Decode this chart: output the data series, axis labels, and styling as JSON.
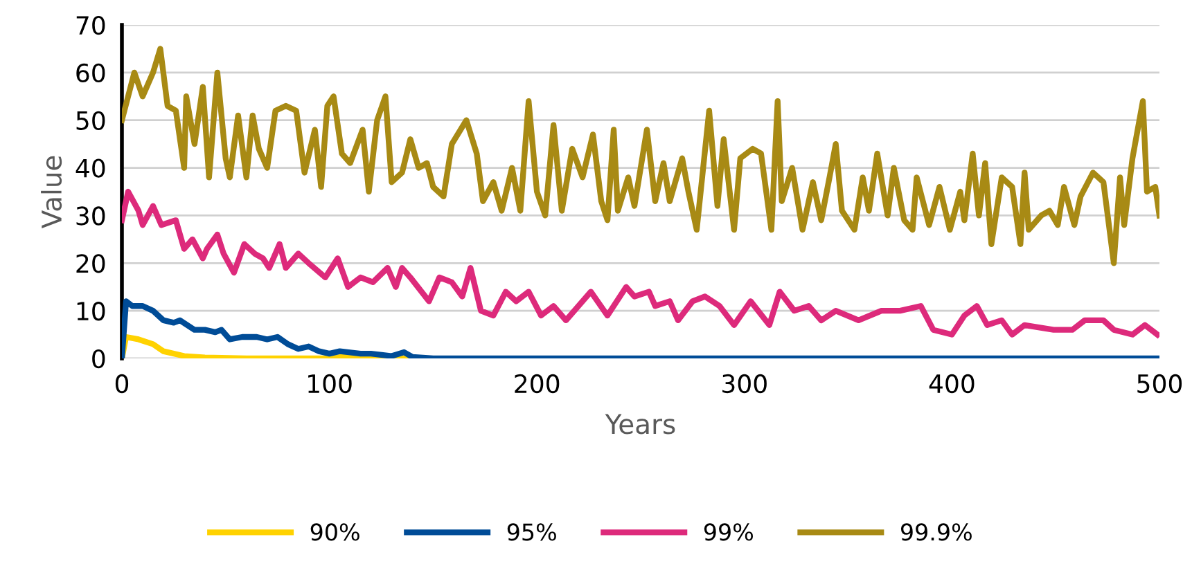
{
  "chart_data": {
    "type": "line",
    "xlabel": "Years",
    "ylabel": "Value",
    "xlim": [
      0,
      500
    ],
    "ylim": [
      0,
      70
    ],
    "xticks": [
      0,
      100,
      200,
      300,
      400,
      500
    ],
    "yticks": [
      0,
      10,
      20,
      30,
      40,
      50,
      60,
      70
    ],
    "grid": "y",
    "legend": "bottom",
    "line_style": "solid",
    "marker": "none",
    "series": [
      {
        "name": "90%",
        "color": "#ffd200",
        "x": [
          0,
          2,
          8,
          15,
          20,
          30,
          40,
          60,
          100,
          110,
          120,
          140
        ],
        "values": [
          0,
          4.5,
          4,
          3,
          1.5,
          0.5,
          0.2,
          0,
          0,
          0.5,
          0,
          0
        ]
      },
      {
        "name": "95%",
        "color": "#004c97",
        "x": [
          0,
          2,
          5,
          10,
          15,
          20,
          25,
          28,
          35,
          40,
          45,
          48,
          52,
          58,
          65,
          70,
          75,
          80,
          85,
          90,
          95,
          100,
          105,
          115,
          120,
          130,
          136,
          140,
          150,
          500
        ],
        "values": [
          0,
          12,
          11,
          11,
          10,
          8,
          7.5,
          8,
          6,
          6,
          5.5,
          6,
          4,
          4.5,
          4.5,
          4,
          4.5,
          3,
          2,
          2.5,
          1.5,
          1,
          1.5,
          1,
          1,
          0.5,
          1.3,
          0.3,
          0,
          0
        ]
      },
      {
        "name": "99%",
        "color": "#dd2a7b",
        "x": [
          0,
          3,
          8,
          10,
          15,
          19,
          26,
          30,
          34,
          39,
          41,
          46,
          49,
          54,
          59,
          64,
          68,
          71,
          76,
          79,
          85,
          90,
          98,
          104,
          109,
          115,
          121,
          128,
          132,
          135,
          139,
          148,
          153,
          159,
          164,
          168,
          173,
          179,
          185,
          190,
          196,
          202,
          208,
          214,
          220,
          226,
          234,
          243,
          247,
          254,
          257,
          264,
          268,
          275,
          281,
          288,
          295,
          303,
          312,
          317,
          324,
          331,
          337,
          344,
          355,
          366,
          375,
          385,
          391,
          400,
          406,
          412,
          417,
          424,
          429,
          435,
          449,
          458,
          464,
          473,
          478,
          487,
          493,
          499
        ],
        "values": [
          29,
          35,
          31,
          28,
          32,
          28,
          29,
          23,
          25,
          21,
          23,
          26,
          22,
          18,
          24,
          22,
          21,
          19,
          24,
          19,
          22,
          20,
          17,
          21,
          15,
          17,
          16,
          19,
          15,
          19,
          17,
          12,
          17,
          16,
          13,
          19,
          10,
          9,
          14,
          12,
          14,
          9,
          11,
          8,
          11,
          14,
          9,
          15,
          13,
          14,
          11,
          12,
          8,
          12,
          13,
          11,
          7,
          12,
          7,
          14,
          10,
          11,
          8,
          10,
          8,
          10,
          10,
          11,
          6,
          5,
          9,
          11,
          7,
          8,
          5,
          7,
          6,
          6,
          8,
          8,
          6,
          5,
          7,
          5
        ]
      },
      {
        "name": "99.9%",
        "color": "#a88a14",
        "x": [
          0,
          3,
          6,
          10,
          15,
          18.5,
          22,
          26,
          30,
          31,
          35,
          39,
          42,
          46,
          50,
          52,
          56,
          60,
          63,
          66,
          70,
          74,
          79,
          84,
          88,
          93,
          96,
          99,
          102,
          106,
          110,
          116,
          119,
          123,
          127,
          130,
          135,
          139,
          143,
          147,
          150,
          155,
          159,
          166,
          171,
          174,
          179,
          183,
          188,
          192,
          196,
          200,
          204,
          208,
          212,
          217,
          222,
          227,
          231,
          234,
          237,
          239,
          244,
          247,
          253,
          257,
          261,
          264,
          270,
          273,
          277,
          283,
          287,
          290,
          295,
          298,
          304,
          308,
          313,
          316,
          318,
          323,
          328,
          333,
          337,
          341,
          344,
          347,
          353,
          357,
          360,
          364,
          369,
          372,
          377,
          381,
          383,
          389,
          394,
          399,
          404,
          406,
          410,
          413,
          416,
          419,
          424,
          429,
          433,
          435,
          437,
          443,
          447,
          451,
          454,
          459,
          462,
          468,
          473,
          478,
          481,
          483,
          487,
          492,
          494,
          498,
          500
        ],
        "values": [
          50,
          55,
          60,
          55,
          60,
          65,
          53,
          52,
          40,
          55,
          45,
          57,
          38,
          60,
          42,
          38,
          51,
          38,
          51,
          44,
          40,
          52,
          53,
          52,
          39,
          48,
          36,
          53,
          55,
          43,
          41,
          48,
          35,
          50,
          55,
          37,
          39,
          46,
          40,
          41,
          36,
          34,
          45,
          50,
          43,
          33,
          37,
          31,
          40,
          31,
          54,
          35,
          30,
          49,
          31,
          44,
          38,
          47,
          33,
          29,
          48,
          31,
          38,
          32,
          48,
          33,
          41,
          33,
          42,
          35,
          27,
          52,
          32,
          46,
          27,
          42,
          44,
          43,
          27,
          54,
          33,
          40,
          27,
          37,
          29,
          38,
          45,
          31,
          27,
          38,
          31,
          43,
          30,
          40,
          29,
          27,
          38,
          28,
          36,
          27,
          35,
          29,
          43,
          30,
          41,
          24,
          38,
          36,
          24,
          39,
          27,
          30,
          31,
          28,
          36,
          28,
          34,
          39,
          37,
          20,
          38,
          28,
          42,
          54,
          35,
          36,
          30
        ]
      }
    ]
  }
}
